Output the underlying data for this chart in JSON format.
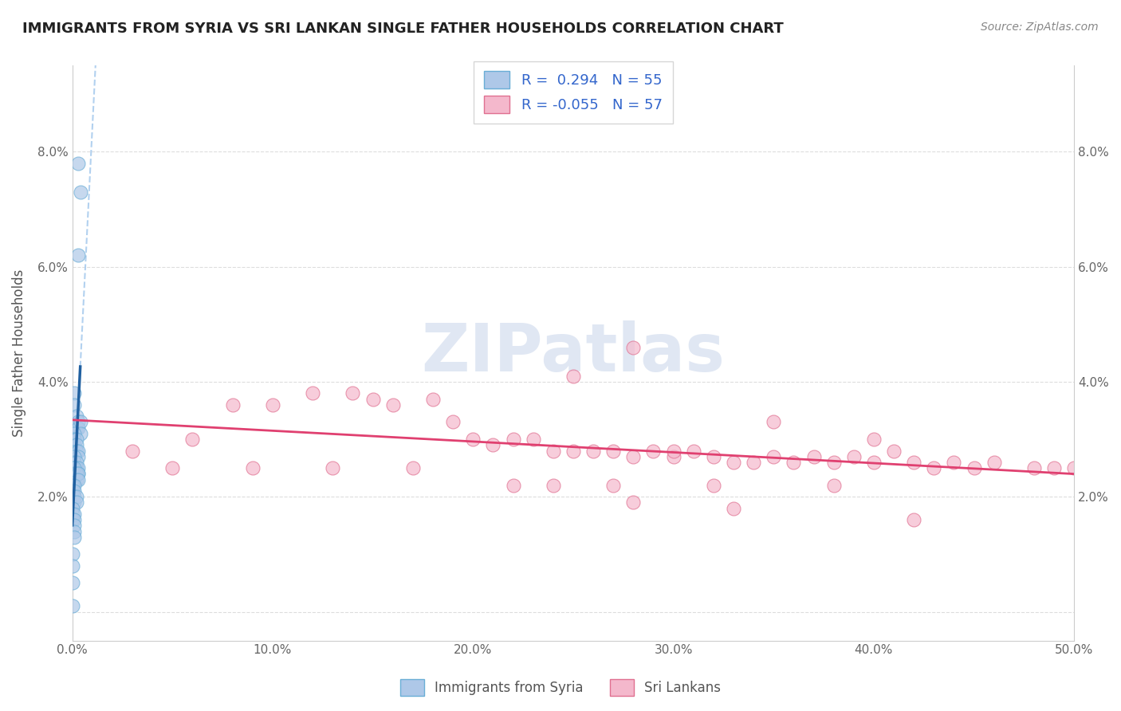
{
  "title": "IMMIGRANTS FROM SYRIA VS SRI LANKAN SINGLE FATHER HOUSEHOLDS CORRELATION CHART",
  "source": "Source: ZipAtlas.com",
  "ylabel": "Single Father Households",
  "xlim": [
    0.0,
    0.5
  ],
  "ylim": [
    -0.005,
    0.095
  ],
  "yticks": [
    0.0,
    0.02,
    0.04,
    0.06,
    0.08
  ],
  "ytick_labels": [
    "",
    "2.0%",
    "4.0%",
    "6.0%",
    "8.0%"
  ],
  "xticks": [
    0.0,
    0.1,
    0.2,
    0.3,
    0.4,
    0.5
  ],
  "xtick_labels": [
    "0.0%",
    "10.0%",
    "20.0%",
    "30.0%",
    "40.0%",
    "50.0%"
  ],
  "legend_entries": [
    {
      "label": "Immigrants from Syria",
      "color": "#aec8e8",
      "R": "0.294",
      "N": "55"
    },
    {
      "label": "Sri Lankans",
      "color": "#f4b8cc",
      "R": "-0.055",
      "N": "57"
    }
  ],
  "blue_scatter_x": [
    0.003,
    0.004,
    0.003,
    0.001,
    0.001,
    0.002,
    0.002,
    0.003,
    0.003,
    0.004,
    0.004,
    0.001,
    0.001,
    0.001,
    0.002,
    0.002,
    0.002,
    0.003,
    0.003,
    0.001,
    0.001,
    0.001,
    0.002,
    0.002,
    0.002,
    0.003,
    0.003,
    0.0,
    0.001,
    0.001,
    0.001,
    0.002,
    0.002,
    0.003,
    0.003,
    0.0,
    0.0,
    0.001,
    0.001,
    0.001,
    0.001,
    0.002,
    0.002,
    0.0,
    0.0,
    0.0,
    0.001,
    0.001,
    0.001,
    0.001,
    0.001,
    0.0,
    0.0,
    0.0,
    0.0
  ],
  "blue_scatter_y": [
    0.078,
    0.073,
    0.062,
    0.038,
    0.036,
    0.034,
    0.032,
    0.033,
    0.032,
    0.033,
    0.031,
    0.031,
    0.03,
    0.029,
    0.03,
    0.029,
    0.028,
    0.028,
    0.027,
    0.027,
    0.026,
    0.025,
    0.026,
    0.025,
    0.024,
    0.025,
    0.024,
    0.025,
    0.025,
    0.024,
    0.023,
    0.024,
    0.023,
    0.024,
    0.023,
    0.022,
    0.021,
    0.022,
    0.021,
    0.02,
    0.019,
    0.02,
    0.019,
    0.018,
    0.017,
    0.016,
    0.017,
    0.016,
    0.015,
    0.014,
    0.013,
    0.01,
    0.008,
    0.005,
    0.001
  ],
  "pink_scatter_x": [
    0.03,
    0.06,
    0.08,
    0.1,
    0.12,
    0.14,
    0.15,
    0.16,
    0.18,
    0.19,
    0.2,
    0.21,
    0.22,
    0.23,
    0.24,
    0.25,
    0.26,
    0.27,
    0.28,
    0.28,
    0.29,
    0.3,
    0.31,
    0.32,
    0.33,
    0.34,
    0.35,
    0.36,
    0.37,
    0.38,
    0.39,
    0.4,
    0.41,
    0.42,
    0.43,
    0.44,
    0.45,
    0.46,
    0.48,
    0.49,
    0.05,
    0.09,
    0.13,
    0.17,
    0.22,
    0.27,
    0.32,
    0.38,
    0.25,
    0.3,
    0.35,
    0.4,
    0.24,
    0.5,
    0.28,
    0.33,
    0.42
  ],
  "pink_scatter_y": [
    0.028,
    0.03,
    0.036,
    0.036,
    0.038,
    0.038,
    0.037,
    0.036,
    0.037,
    0.033,
    0.03,
    0.029,
    0.03,
    0.03,
    0.028,
    0.028,
    0.028,
    0.028,
    0.027,
    0.046,
    0.028,
    0.027,
    0.028,
    0.027,
    0.026,
    0.026,
    0.027,
    0.026,
    0.027,
    0.026,
    0.027,
    0.026,
    0.028,
    0.026,
    0.025,
    0.026,
    0.025,
    0.026,
    0.025,
    0.025,
    0.025,
    0.025,
    0.025,
    0.025,
    0.022,
    0.022,
    0.022,
    0.022,
    0.041,
    0.028,
    0.033,
    0.03,
    0.022,
    0.025,
    0.019,
    0.018,
    0.016
  ],
  "blue_scatter_color": "#aec8e8",
  "blue_scatter_edge": "#6aaed6",
  "pink_scatter_color": "#f4b8cc",
  "pink_scatter_edge": "#e07090",
  "blue_line_color": "#2060a0",
  "pink_line_color": "#e04070",
  "gray_dash_color": "#aaccee",
  "background_color": "#ffffff",
  "grid_color": "#dddddd",
  "watermark_color": "#ccd8ec"
}
